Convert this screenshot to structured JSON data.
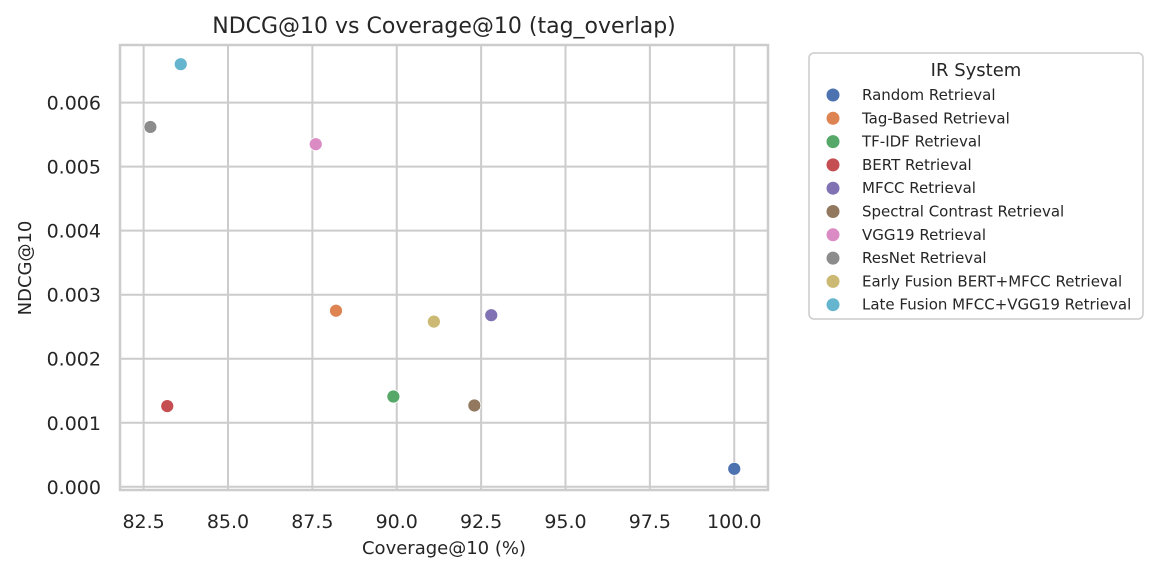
{
  "chart_data": {
    "type": "scatter",
    "title": "NDCG@10 vs Coverage@10 (tag_overlap)",
    "xlabel": "Coverage@10 (%)",
    "ylabel": "NDCG@10",
    "xlim": [
      81.8,
      101.0
    ],
    "ylim": [
      -5e-05,
      0.0069
    ],
    "xticks": [
      "82.5",
      "85.0",
      "87.5",
      "90.0",
      "92.5",
      "95.0",
      "97.5",
      "100.0"
    ],
    "yticks": [
      "0.000",
      "0.001",
      "0.002",
      "0.003",
      "0.004",
      "0.005",
      "0.006"
    ],
    "grid": true,
    "legend": {
      "title": "IR System",
      "placement": "outside-right"
    },
    "series": [
      {
        "name": "Random Retrieval",
        "x": 100.0,
        "y": 0.00028,
        "color": "#4c72b0"
      },
      {
        "name": "Tag-Based Retrieval",
        "x": 88.2,
        "y": 0.00275,
        "color": "#dd8452"
      },
      {
        "name": "TF-IDF Retrieval",
        "x": 89.9,
        "y": 0.00141,
        "color": "#55a868"
      },
      {
        "name": "BERT Retrieval",
        "x": 83.2,
        "y": 0.00126,
        "color": "#c44e52"
      },
      {
        "name": "MFCC Retrieval",
        "x": 92.8,
        "y": 0.00268,
        "color": "#8172b3"
      },
      {
        "name": "Spectral Contrast Retrieval",
        "x": 92.3,
        "y": 0.00127,
        "color": "#937860"
      },
      {
        "name": "VGG19 Retrieval",
        "x": 87.6,
        "y": 0.00535,
        "color": "#da8bc3"
      },
      {
        "name": "ResNet Retrieval",
        "x": 82.7,
        "y": 0.00562,
        "color": "#8c8c8c"
      },
      {
        "name": "Early Fusion BERT+MFCC Retrieval",
        "x": 91.1,
        "y": 0.00258,
        "color": "#ccb974"
      },
      {
        "name": "Late Fusion MFCC+VGG19 Retrieval",
        "x": 83.6,
        "y": 0.0066,
        "color": "#64b5cd"
      }
    ]
  }
}
